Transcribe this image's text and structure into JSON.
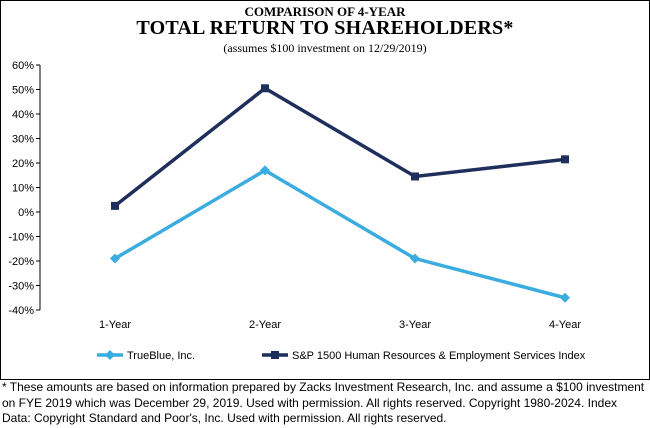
{
  "chart_data": {
    "type": "line",
    "super_title": "COMPARISON OF 4-YEAR",
    "title": "TOTAL RETURN TO SHAREHOLDERS*",
    "subtitle": "(assumes $100 investment on 12/29/2019)",
    "categories": [
      "1-Year",
      "2-Year",
      "3-Year",
      "4-Year"
    ],
    "ylim": [
      -40,
      60
    ],
    "yticks": [
      60,
      50,
      40,
      30,
      20,
      10,
      0,
      -10,
      -20,
      -30,
      -40
    ],
    "ytick_labels": [
      "60%",
      "50%",
      "40%",
      "30%",
      "20%",
      "10%",
      "0%",
      "-10%",
      "-20%",
      "-30%",
      "-40%"
    ],
    "grid": false,
    "legend_position": "bottom",
    "series": [
      {
        "name": "TrueBlue, Inc.",
        "values": [
          -19,
          17,
          -19,
          -35
        ],
        "color": "#3aace0",
        "marker": "diamond"
      },
      {
        "name": "S&P 1500 Human Resources & Employment Services Index",
        "values": [
          2.5,
          50.5,
          14.5,
          21.5
        ],
        "color": "#1f2f5c",
        "marker": "square"
      }
    ]
  },
  "footnote": "* These amounts are based on information prepared by Zacks Investment Research, Inc. and assume a $100 investment on FYE 2019 which was December 29, 2019. Used with permission. All rights reserved. Copyright 1980-2024. Index Data: Copyright Standard and Poor's, Inc. Used with permission. All rights reserved."
}
